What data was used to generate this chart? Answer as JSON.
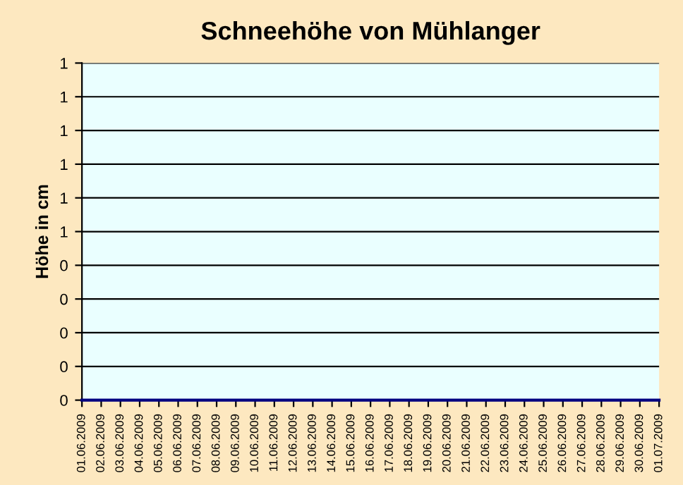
{
  "chart_data": {
    "type": "line",
    "title": "Schneehöhe von Mühlanger",
    "ylabel": "Höhe in cm",
    "categories": [
      "01.06.2009",
      "02.06.2009",
      "03.06.2009",
      "04.06.2009",
      "05.06.2009",
      "06.06.2009",
      "07.06.2009",
      "08.06.2009",
      "09.06.2009",
      "10.06.2009",
      "11.06.2009",
      "12.06.2009",
      "13.06.2009",
      "14.06.2009",
      "15.06.2009",
      "16.06.2009",
      "17.06.2009",
      "18.06.2009",
      "19.06.2009",
      "20.06.2009",
      "21.06.2009",
      "22.06.2009",
      "23.06.2009",
      "24.06.2009",
      "25.06.2009",
      "26.06.2009",
      "27.06.2009",
      "28.06.2009",
      "29.06.2009",
      "30.06.2009",
      "01.07.2009"
    ],
    "series": [
      {
        "color": "#000080",
        "values": [
          0,
          0,
          0,
          0,
          0,
          0,
          0,
          0,
          0,
          0,
          0,
          0,
          0,
          0,
          0,
          0,
          0,
          0,
          0,
          0,
          0,
          0,
          0,
          0,
          0,
          0,
          0,
          0,
          0,
          0,
          0
        ]
      }
    ],
    "ylim": [
      0,
      1
    ],
    "yticks": [
      0,
      {
        "value": 0.1,
        "label": "0"
      },
      {
        "value": 0.2,
        "label": "0"
      },
      {
        "value": 0.3,
        "label": "0"
      },
      {
        "value": 0.4,
        "label": "0"
      },
      {
        "value": 0.5,
        "label": "1"
      },
      {
        "value": 0.6,
        "label": "1"
      },
      {
        "value": 0.7,
        "label": "1"
      },
      {
        "value": 0.8,
        "label": "1"
      },
      {
        "value": 0.9,
        "label": "1"
      },
      1
    ],
    "grid": "y",
    "legend": false,
    "marker": "none",
    "line_style": "solid"
  }
}
